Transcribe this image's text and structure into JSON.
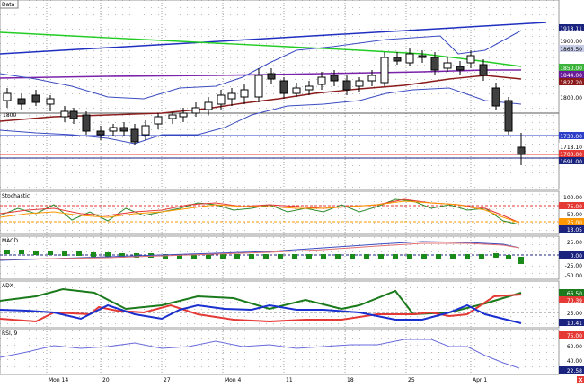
{
  "panels": {
    "price_label": "Data",
    "stochastic_label": "Stochastic",
    "macd_label": "MACD",
    "adx_label": "ADX",
    "rsi_label": "RSI, 9"
  },
  "price_axis": [
    {
      "text": "1918.11",
      "bg": "#1a237e",
      "fg": "#ffffff"
    },
    {
      "text": "1900.00",
      "bg": null,
      "fg": "#000000"
    },
    {
      "text": "1866.50",
      "bg": "#c7cce6",
      "fg": "#000000"
    },
    {
      "text": "1850.00",
      "bg": "#3bb33b",
      "fg": "#ffffff"
    },
    {
      "text": "1844.00",
      "bg": "#6a1b9a",
      "fg": "#ffffff"
    },
    {
      "text": "1827.20",
      "bg": "#8b1a1a",
      "fg": "#ffffff"
    },
    {
      "text": "1800.00",
      "bg": null,
      "fg": "#000000"
    },
    {
      "text": "1730.00",
      "bg": "#2d3ec8",
      "fg": "#ffffff"
    },
    {
      "text": "1718.10",
      "bg": "#ffffff",
      "fg": "#000000"
    },
    {
      "text": "1700.00",
      "bg": "#e53935",
      "fg": "#ffffff"
    },
    {
      "text": "1691.00",
      "bg": "#1a237e",
      "fg": "#ffffff"
    }
  ],
  "price_inline_label": "1800",
  "stoch_axis": [
    {
      "text": "100.00",
      "bg": null,
      "fg": "#000000"
    },
    {
      "text": "75.00",
      "bg": "#e53935",
      "fg": "#ffffff"
    },
    {
      "text": "50.00",
      "bg": null,
      "fg": "#000000"
    },
    {
      "text": "25.00",
      "bg": "#ff9800",
      "fg": "#ffffff"
    },
    {
      "text": "13.05",
      "bg": "#1a237e",
      "fg": "#ffffff"
    }
  ],
  "macd_axis": [
    {
      "text": "25.00",
      "bg": null,
      "fg": "#000000"
    },
    {
      "text": "0.00",
      "bg": "#1a237e",
      "fg": "#ffffff"
    },
    {
      "text": "-25.00",
      "bg": null,
      "fg": "#000000"
    },
    {
      "text": "-50.00",
      "bg": null,
      "fg": "#000000"
    }
  ],
  "adx_axis": [
    {
      "text": "66.50",
      "bg": "#1b7a1b",
      "fg": "#ffffff"
    },
    {
      "text": "70.39",
      "bg": "#e53935",
      "fg": "#ffffff"
    },
    {
      "text": "25.00",
      "bg": null,
      "fg": "#000000"
    },
    {
      "text": "10.41",
      "bg": "#1a237e",
      "fg": "#ffffff"
    }
  ],
  "rsi_axis": [
    {
      "text": "75.00",
      "bg": "#e53935",
      "fg": "#ffffff"
    },
    {
      "text": "60.00",
      "bg": null,
      "fg": "#000000"
    },
    {
      "text": "40.00",
      "bg": null,
      "fg": "#000000"
    },
    {
      "text": "22.58",
      "bg": "#1a237e",
      "fg": "#ffffff"
    }
  ],
  "date_labels": [
    "Mon 14",
    "20",
    "27",
    "Mon 4",
    "11",
    "18",
    "25",
    "Apr 1"
  ],
  "colors": {
    "up_candle": "#ffffff",
    "down_candle": "#404040",
    "bollinger": "#3a4cc0",
    "trend_blue": "#1f2fbf",
    "green_ma": "#22cc22",
    "purple_line": "#7a22aa",
    "red_ma": "#8b1a1a",
    "macd_hist": "#1a8a1a",
    "adx_green": "#1b7a1b",
    "adx_red": "#e53935",
    "adx_blue": "#1a2fcf"
  },
  "corner_icon": "close-icon"
}
